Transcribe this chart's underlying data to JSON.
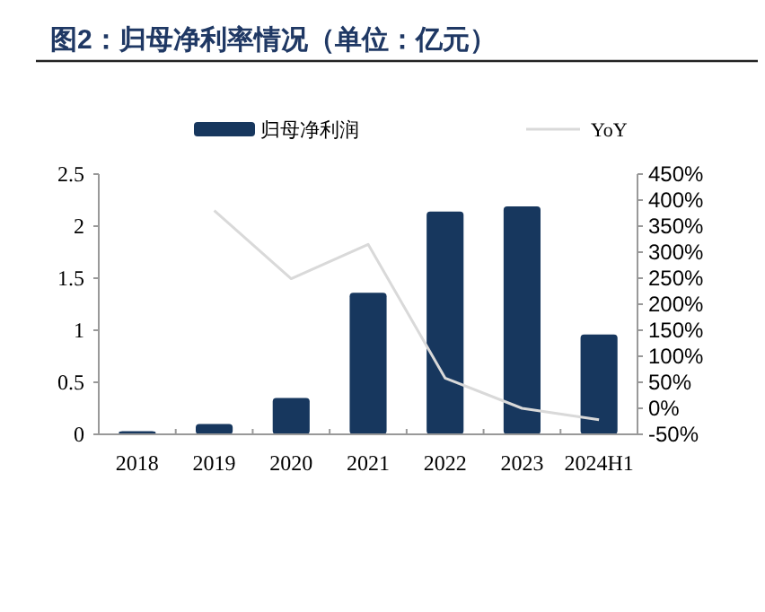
{
  "chart_data": {
    "type": "bar",
    "title": "图2：归母净利率情况（单位：亿元）",
    "categories": [
      "2018",
      "2019",
      "2020",
      "2021",
      "2022",
      "2023",
      "2024H1"
    ],
    "series": [
      {
        "name": "归母净利润",
        "color": "#17375e",
        "values": [
          0.03,
          0.1,
          0.35,
          1.36,
          2.14,
          2.19,
          0.96
        ]
      },
      {
        "name": "YoY",
        "type": "line",
        "axis": "y2",
        "color": "#d9d9d9",
        "values": [
          null,
          380,
          249,
          315,
          58,
          0,
          -22
        ]
      }
    ],
    "ylim": [
      0,
      2.5
    ],
    "yticks": [
      0,
      0.5,
      1,
      1.5,
      2,
      2.5
    ],
    "y2lim": [
      -50,
      450
    ],
    "y2ticks": [
      {
        "value": -50,
        "label": "-50%"
      },
      {
        "value": 0,
        "label": "0%"
      },
      {
        "value": 50,
        "label": "50%"
      },
      {
        "value": 100,
        "label": "100%"
      },
      {
        "value": 150,
        "label": "150%"
      },
      {
        "value": 200,
        "label": "200%"
      },
      {
        "value": 250,
        "label": "250%"
      },
      {
        "value": 300,
        "label": "300%"
      },
      {
        "value": 350,
        "label": "350%"
      },
      {
        "value": 400,
        "label": "400%"
      },
      {
        "value": 450,
        "label": "450%"
      }
    ],
    "legend": "top",
    "grid": false
  }
}
